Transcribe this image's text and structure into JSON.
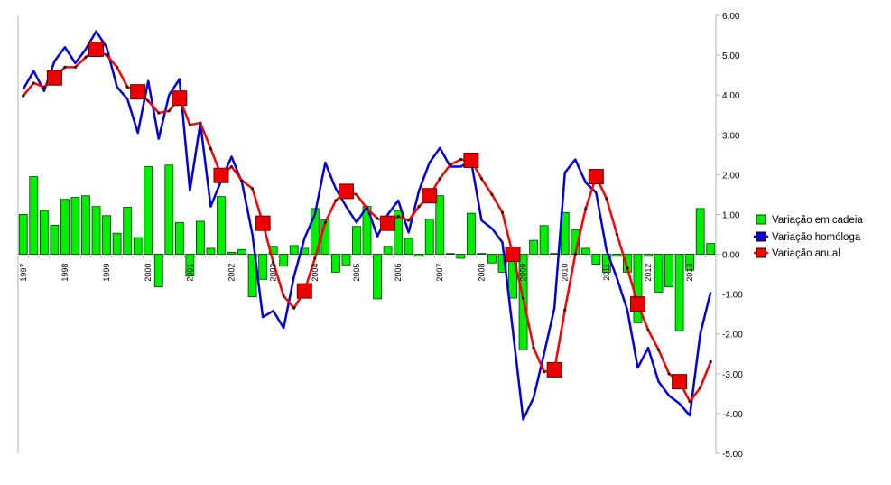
{
  "chart_data": {
    "type": "bar-line",
    "categories": [
      "1997",
      null,
      null,
      null,
      "1998",
      null,
      null,
      null,
      "1999",
      null,
      null,
      null,
      "2000",
      null,
      null,
      null,
      "2001",
      null,
      null,
      null,
      "2002",
      null,
      null,
      null,
      "2003",
      null,
      null,
      null,
      "2004",
      null,
      null,
      null,
      "2005",
      null,
      null,
      null,
      "2006",
      null,
      null,
      null,
      "2007",
      null,
      null,
      null,
      "2008",
      null,
      null,
      null,
      "2009",
      null,
      null,
      null,
      "2010",
      null,
      null,
      null,
      "2011",
      null,
      null,
      null,
      "2012",
      null,
      null,
      null,
      "2013",
      null,
      null
    ],
    "series": [
      {
        "name": "Variação em cadeia",
        "type": "bar",
        "color": "#00ee00",
        "values": [
          1.0,
          1.95,
          1.1,
          0.73,
          1.38,
          1.43,
          1.47,
          1.2,
          0.97,
          0.53,
          1.18,
          0.42,
          2.2,
          -0.82,
          2.24,
          0.8,
          -0.55,
          0.83,
          0.15,
          1.45,
          0.05,
          0.12,
          -1.07,
          -0.63,
          0.2,
          -0.3,
          0.22,
          0.15,
          1.15,
          0.87,
          -0.45,
          -0.28,
          0.7,
          1.2,
          -1.12,
          0.2,
          1.1,
          0.4,
          -0.05,
          0.88,
          1.47,
          0.02,
          -0.1,
          1.03,
          0.02,
          -0.22,
          -0.45,
          -1.1,
          -2.4,
          0.35,
          0.72,
          0.02,
          1.05,
          0.62,
          0.15,
          -0.25,
          -0.45,
          -0.05,
          -0.45,
          -1.72,
          -0.05,
          -0.95,
          -0.82,
          -1.92,
          -0.4,
          1.15,
          0.27
        ]
      },
      {
        "name": "Variação homóloga",
        "type": "line",
        "color": "#0000e0",
        "values": [
          4.15,
          4.6,
          4.1,
          4.85,
          5.2,
          4.8,
          5.15,
          5.6,
          5.2,
          4.2,
          3.9,
          3.05,
          4.35,
          2.9,
          4.0,
          4.4,
          1.6,
          3.3,
          1.2,
          1.85,
          2.45,
          1.8,
          0.5,
          -1.58,
          -1.42,
          -1.85,
          -0.55,
          0.4,
          1.0,
          2.3,
          1.65,
          1.2,
          0.8,
          1.2,
          0.45,
          1.0,
          1.35,
          0.55,
          1.6,
          2.3,
          2.67,
          2.2,
          2.2,
          2.35,
          0.85,
          0.65,
          0.3,
          -1.9,
          -4.15,
          -3.6,
          -2.5,
          -1.35,
          2.05,
          2.38,
          1.8,
          1.55,
          0.1,
          -0.6,
          -1.4,
          -2.85,
          -2.35,
          -3.2,
          -3.55,
          -3.75,
          -4.05,
          -2.0,
          -0.95
        ]
      },
      {
        "name": "Variação anual",
        "type": "line",
        "color": "#ff0000",
        "values": [
          3.98,
          4.3,
          4.2,
          4.43,
          4.7,
          4.7,
          4.95,
          5.15,
          5.0,
          4.7,
          4.2,
          4.08,
          3.85,
          3.55,
          3.6,
          3.92,
          3.25,
          3.3,
          2.65,
          1.98,
          2.2,
          1.85,
          1.65,
          0.78,
          -0.2,
          -1.05,
          -1.35,
          -0.92,
          -0.1,
          0.8,
          1.35,
          1.58,
          1.5,
          1.15,
          0.9,
          0.78,
          0.95,
          0.85,
          1.2,
          1.47,
          1.9,
          2.25,
          2.38,
          2.36,
          1.9,
          1.5,
          1.05,
          0.0,
          -1.1,
          -2.35,
          -2.95,
          -2.9,
          -1.4,
          0.0,
          1.15,
          1.95,
          1.4,
          0.5,
          -0.35,
          -1.25,
          -1.9,
          -2.4,
          -3.0,
          -3.2,
          -3.7,
          -3.35,
          -2.7
        ]
      }
    ],
    "ylim": [
      -5,
      6
    ],
    "yticks": [
      {
        "value": -5,
        "label": "-5.00"
      },
      {
        "value": -4,
        "label": "-4.00"
      },
      {
        "value": -3,
        "label": "-3.00"
      },
      {
        "value": -2,
        "label": "-2.00"
      },
      {
        "value": -1,
        "label": "-1.00"
      },
      {
        "value": 0,
        "label": "0.00"
      },
      {
        "value": 1,
        "label": "1.00"
      },
      {
        "value": 2,
        "label": "2.00"
      },
      {
        "value": 3,
        "label": "3.00"
      },
      {
        "value": 4,
        "label": "4.00"
      },
      {
        "value": 5,
        "label": "5.00"
      },
      {
        "value": 6,
        "label": "6.00"
      }
    ],
    "legend": "right"
  }
}
